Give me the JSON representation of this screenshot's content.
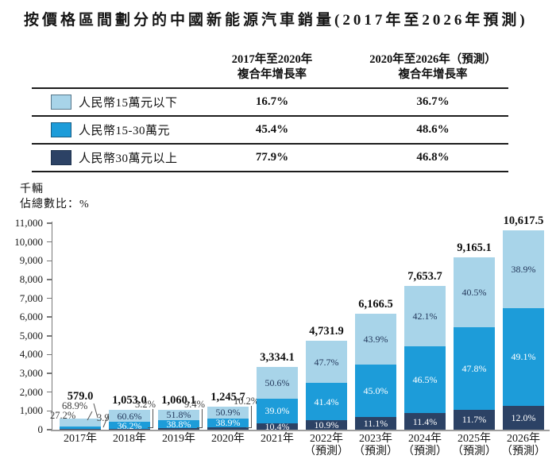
{
  "title": "按價格區間劃分的中國新能源汽車銷量(2017年至2026年預測)",
  "cagr_table": {
    "col_headers": [
      {
        "line1": "2017年至2020年",
        "line2": "複合年增長率"
      },
      {
        "line1": "2020年至2026年（預測）",
        "line2": "複合年增長率"
      }
    ],
    "rows": [
      {
        "label": "人民幣15萬元以下",
        "swatch_color": "#A8D4E9",
        "cagr_2017_2020": "16.7%",
        "cagr_2020_2026": "36.7%"
      },
      {
        "label": "人民幣15-30萬元",
        "swatch_color": "#1D9CD9",
        "cagr_2017_2020": "45.4%",
        "cagr_2020_2026": "48.6%"
      },
      {
        "label": "人民幣30萬元以上",
        "swatch_color": "#2C4265",
        "cagr_2017_2020": "77.9%",
        "cagr_2020_2026": "46.8%"
      }
    ]
  },
  "chart": {
    "unit_label": "千輛",
    "share_label": "佔總數比：%"
  },
  "chart_data": {
    "type": "bar",
    "stacked": true,
    "title": "按價格區間劃分的中國新能源汽車銷量(2017年至2026年預測)",
    "ylabel": "千輛",
    "ylim": [
      0,
      11000
    ],
    "ytick_step": 1000,
    "grid": false,
    "legend_position": "top-table",
    "categories": [
      {
        "year": "2017年",
        "note": ""
      },
      {
        "year": "2018年",
        "note": ""
      },
      {
        "year": "2019年",
        "note": ""
      },
      {
        "year": "2020年",
        "note": ""
      },
      {
        "year": "2021年",
        "note": ""
      },
      {
        "year": "2022年",
        "note": "（預測）"
      },
      {
        "year": "2023年",
        "note": "（預測）"
      },
      {
        "year": "2024年",
        "note": "（預測）"
      },
      {
        "year": "2025年",
        "note": "（預測）"
      },
      {
        "year": "2026年",
        "note": "（預測）"
      }
    ],
    "totals": [
      579.0,
      1053.0,
      1060.1,
      1245.7,
      3334.1,
      4731.9,
      6166.5,
      7653.7,
      9165.1,
      10617.5
    ],
    "total_labels": [
      "579.0",
      "1,053.0",
      "1,060.1",
      "1,245.7",
      "3,334.1",
      "4,731.9",
      "6,166.5",
      "7,653.7",
      "9,165.1",
      "10,617.5"
    ],
    "series": [
      {
        "name": "人民幣15萬元以下",
        "color": "#A8D4E9",
        "share_pct": [
          68.9,
          60.6,
          51.8,
          50.9,
          50.6,
          47.7,
          43.9,
          42.1,
          40.5,
          38.9
        ]
      },
      {
        "name": "人民幣15-30萬元",
        "color": "#1D9CD9",
        "share_pct": [
          27.2,
          36.2,
          38.8,
          38.9,
          39.0,
          41.4,
          45.0,
          46.5,
          47.8,
          49.1
        ]
      },
      {
        "name": "人民幣30萬元以上",
        "color": "#2C4265",
        "share_pct": [
          3.9,
          3.2,
          9.4,
          10.2,
          10.4,
          10.9,
          11.1,
          11.4,
          11.7,
          12.0
        ]
      }
    ],
    "label_modes": [
      "outside",
      "dark-outside",
      "dark-outside",
      "dark-outside",
      "inside",
      "inside",
      "inside",
      "inside",
      "inside",
      "inside"
    ]
  }
}
